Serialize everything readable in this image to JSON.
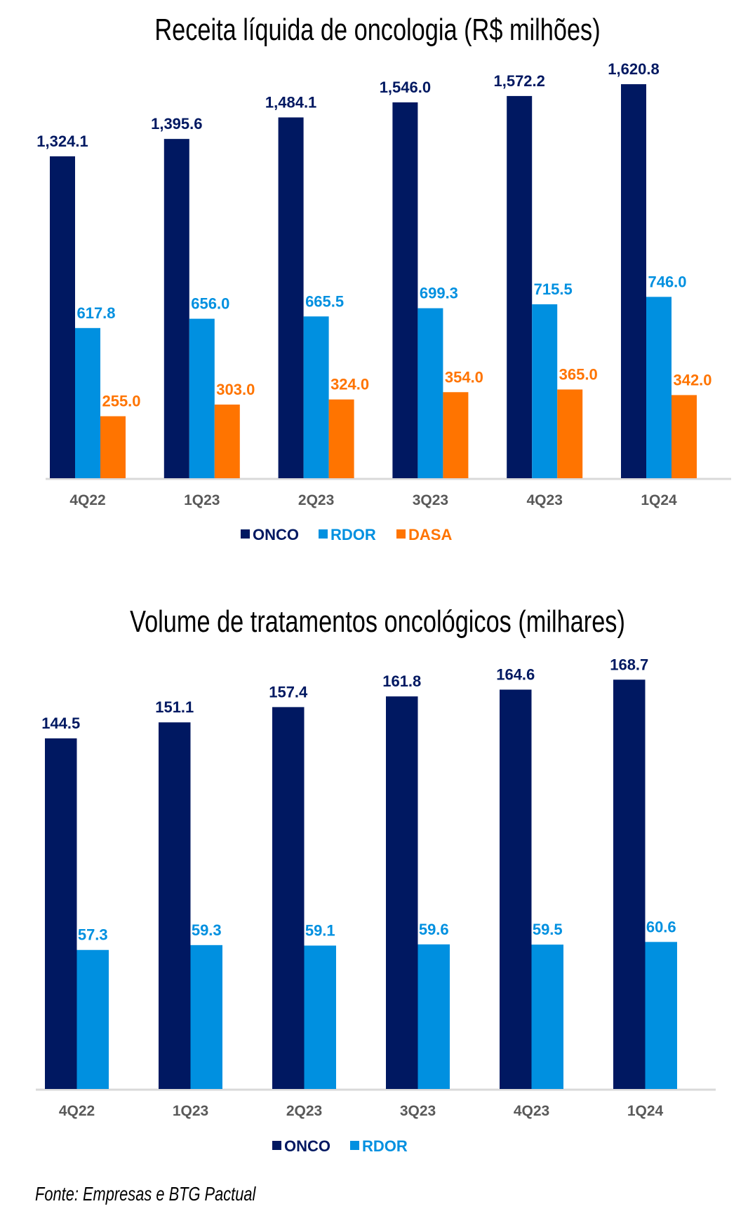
{
  "colors": {
    "ONCO": "#001861",
    "RDOR": "#0090E0",
    "DASA": "#FF7400",
    "axis": "#D9D9D9",
    "tick": "#595959"
  },
  "source": "Fonte: Empresas e BTG Pactual",
  "chart_data": [
    {
      "type": "bar",
      "title": "Receita líquida de oncologia (R$ milhões)",
      "xlabel": "",
      "ylabel": "",
      "categories": [
        "4Q22",
        "1Q23",
        "2Q23",
        "3Q23",
        "4Q23",
        "1Q24"
      ],
      "series": [
        {
          "name": "ONCO",
          "values": [
            1324.1,
            1395.6,
            1484.1,
            1546.0,
            1572.2,
            1620.8
          ],
          "labels": [
            "1,324.1",
            "1,395.6",
            "1,484.1",
            "1,546.0",
            "1,572.2",
            "1,620.8"
          ]
        },
        {
          "name": "RDOR",
          "values": [
            617.8,
            656.0,
            665.5,
            699.3,
            715.5,
            746.0
          ],
          "labels": [
            "617.8",
            "656.0",
            "665.5",
            "699.3",
            "715.5",
            "746.0"
          ]
        },
        {
          "name": "DASA",
          "values": [
            255.0,
            303.0,
            324.0,
            354.0,
            365.0,
            342.0
          ],
          "labels": [
            "255.0",
            "303.0",
            "324.0",
            "354.0",
            "365.0",
            "342.0"
          ]
        }
      ],
      "ylim": [
        0,
        1700
      ],
      "grid": false,
      "legend": "bottom"
    },
    {
      "type": "bar",
      "title": "Volume de tratamentos oncológicos (milhares)",
      "xlabel": "",
      "ylabel": "",
      "categories": [
        "4Q22",
        "1Q23",
        "2Q23",
        "3Q23",
        "4Q23",
        "1Q24"
      ],
      "series": [
        {
          "name": "ONCO",
          "values": [
            144.5,
            151.1,
            157.4,
            161.8,
            164.6,
            168.7
          ],
          "labels": [
            "144.5",
            "151.1",
            "157.4",
            "161.8",
            "164.6",
            "168.7"
          ]
        },
        {
          "name": "RDOR",
          "values": [
            57.3,
            59.3,
            59.1,
            59.6,
            59.5,
            60.6
          ],
          "labels": [
            "57.3",
            "59.3",
            "59.1",
            "59.6",
            "59.5",
            "60.6"
          ]
        }
      ],
      "ylim": [
        0,
        180
      ],
      "grid": false,
      "legend": "bottom"
    }
  ]
}
